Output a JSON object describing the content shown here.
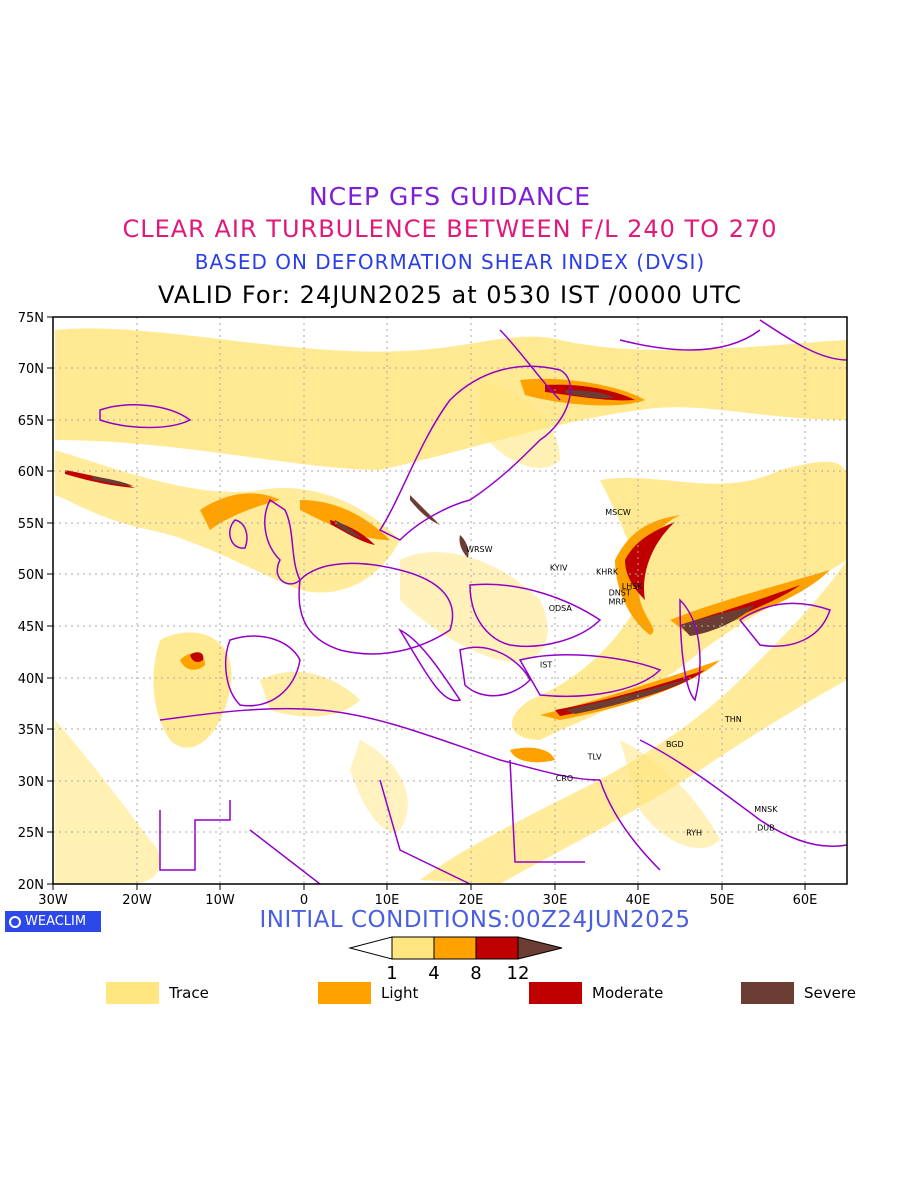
{
  "titles": {
    "line1": "NCEP GFS GUIDANCE",
    "line2": "CLEAR AIR TURBULENCE BETWEEN F/L 240 TO 270",
    "line3": "BASED ON DEFORMATION SHEAR INDEX (DVSI)",
    "line4": "VALID For: 24JUN2025 at 0530 IST /0000 UTC"
  },
  "map": {
    "lat_labels": [
      "75N",
      "70N",
      "65N",
      "60N",
      "55N",
      "50N",
      "45N",
      "40N",
      "35N",
      "30N",
      "25N",
      "20N"
    ],
    "lon_labels": [
      "30W",
      "20W",
      "10W",
      "0",
      "10E",
      "20E",
      "30E",
      "40E",
      "50E",
      "60E"
    ],
    "lat_range": [
      20,
      75
    ],
    "lon_range": [
      -30,
      65
    ],
    "grid": true,
    "cities": [
      {
        "name": "MSCW",
        "lon": 37.6,
        "lat": 55.8
      },
      {
        "name": "WRSW",
        "lon": 21.0,
        "lat": 52.2
      },
      {
        "name": "KYIV",
        "lon": 30.5,
        "lat": 50.4
      },
      {
        "name": "KHRK",
        "lon": 36.3,
        "lat": 50.0
      },
      {
        "name": "LHSK",
        "lon": 39.3,
        "lat": 48.6
      },
      {
        "name": "DNST",
        "lon": 37.8,
        "lat": 48.0
      },
      {
        "name": "MRP",
        "lon": 37.5,
        "lat": 47.1
      },
      {
        "name": "ODSA",
        "lon": 30.7,
        "lat": 46.5
      },
      {
        "name": "IST",
        "lon": 29.0,
        "lat": 41.0
      },
      {
        "name": "THN",
        "lon": 51.4,
        "lat": 35.7
      },
      {
        "name": "BGD",
        "lon": 44.4,
        "lat": 33.3
      },
      {
        "name": "TLV",
        "lon": 34.8,
        "lat": 32.1
      },
      {
        "name": "CRO",
        "lon": 31.2,
        "lat": 30.0
      },
      {
        "name": "MNSK",
        "lon": 55.3,
        "lat": 27.0
      },
      {
        "name": "DUB",
        "lon": 55.3,
        "lat": 25.2
      },
      {
        "name": "RYH",
        "lon": 46.7,
        "lat": 24.7
      }
    ],
    "colors": {
      "trace": "#ffe680",
      "light": "#ffa200",
      "moderate": "#c00000",
      "severe": "#6b3d33",
      "boundaries": "#9400c8"
    }
  },
  "badge": "WEACLIM",
  "initial_conditions": "INITIAL CONDITIONS:00Z24JUN2025",
  "colorbar": {
    "ticks": [
      "1",
      "4",
      "8",
      "12"
    ],
    "colors": [
      "#ffffff",
      "#ffe680",
      "#ffa200",
      "#c00000",
      "#6b3d33"
    ]
  },
  "legend": [
    {
      "label": "Trace",
      "color": "#ffe680"
    },
    {
      "label": "Light",
      "color": "#ffa200"
    },
    {
      "label": "Moderate",
      "color": "#c00000"
    },
    {
      "label": "Severe",
      "color": "#6b3d33"
    }
  ]
}
